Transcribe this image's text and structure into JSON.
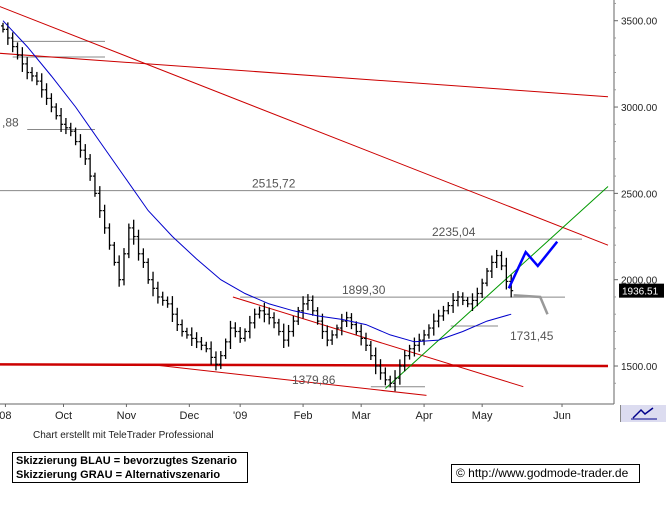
{
  "chart_data": {
    "type": "candlestick",
    "y_axis": {
      "ticks": [
        1500,
        2000,
        2500,
        3000,
        3500
      ],
      "tick_labels": [
        "1500.00",
        "2000.00",
        "2500.00",
        "3000.00",
        "3500.00"
      ],
      "range": [
        1280,
        3620
      ],
      "side": "right"
    },
    "x_axis": {
      "labels": [
        "08",
        "Oct",
        "Nov",
        "Dec",
        "'09",
        "Feb",
        "Mar",
        "Apr",
        "May",
        "Jun"
      ]
    },
    "current_price": {
      "label": "1936.51",
      "value": 1936.51
    },
    "levels": [
      {
        "label": "2515,72",
        "value": 2515.72
      },
      {
        "label": "2235,04",
        "value": 2235.04
      },
      {
        "label": "1899,30",
        "value": 1899.3
      },
      {
        "label": "1731,45",
        "value": 1731.45
      },
      {
        "label": "1379,86",
        "value": 1379.86
      },
      {
        "label": ",88",
        "value": 2870
      }
    ],
    "price_series": [
      [
        0,
        3450
      ],
      [
        2,
        3400
      ],
      [
        4,
        3350
      ],
      [
        6,
        3300
      ],
      [
        8,
        3250
      ],
      [
        10,
        3200
      ],
      [
        12,
        3180
      ],
      [
        14,
        3150
      ],
      [
        16,
        3100
      ],
      [
        18,
        3050
      ],
      [
        20,
        3000
      ],
      [
        22,
        2950
      ],
      [
        24,
        2900
      ],
      [
        26,
        2880
      ],
      [
        28,
        2860
      ],
      [
        30,
        2800
      ],
      [
        32,
        2750
      ],
      [
        34,
        2700
      ],
      [
        36,
        2600
      ],
      [
        38,
        2500
      ],
      [
        40,
        2400
      ],
      [
        42,
        2300
      ],
      [
        44,
        2200
      ],
      [
        46,
        2100
      ],
      [
        48,
        2000
      ],
      [
        50,
        2150
      ],
      [
        52,
        2300
      ],
      [
        54,
        2250
      ],
      [
        56,
        2150
      ],
      [
        58,
        2100
      ],
      [
        60,
        2000
      ],
      [
        62,
        1950
      ],
      [
        64,
        1900
      ],
      [
        66,
        1880
      ],
      [
        68,
        1860
      ],
      [
        70,
        1800
      ],
      [
        72,
        1740
      ],
      [
        74,
        1700
      ],
      [
        76,
        1680
      ],
      [
        78,
        1660
      ],
      [
        80,
        1640
      ],
      [
        82,
        1620
      ],
      [
        84,
        1600
      ],
      [
        86,
        1550
      ],
      [
        88,
        1510
      ],
      [
        90,
        1560
      ],
      [
        92,
        1640
      ],
      [
        94,
        1720
      ],
      [
        96,
        1700
      ],
      [
        98,
        1660
      ],
      [
        100,
        1700
      ],
      [
        102,
        1750
      ],
      [
        104,
        1800
      ],
      [
        106,
        1820
      ],
      [
        108,
        1800
      ],
      [
        110,
        1780
      ],
      [
        112,
        1750
      ],
      [
        114,
        1700
      ],
      [
        116,
        1650
      ],
      [
        118,
        1700
      ],
      [
        120,
        1760
      ],
      [
        122,
        1820
      ],
      [
        124,
        1860
      ],
      [
        126,
        1880
      ],
      [
        128,
        1820
      ],
      [
        130,
        1760
      ],
      [
        132,
        1700
      ],
      [
        134,
        1650
      ],
      [
        136,
        1680
      ],
      [
        138,
        1720
      ],
      [
        140,
        1760
      ],
      [
        142,
        1780
      ],
      [
        144,
        1740
      ],
      [
        146,
        1700
      ],
      [
        148,
        1660
      ],
      [
        150,
        1620
      ],
      [
        152,
        1560
      ],
      [
        154,
        1500
      ],
      [
        156,
        1460
      ],
      [
        158,
        1420
      ],
      [
        160,
        1400
      ],
      [
        162,
        1430
      ],
      [
        164,
        1500
      ],
      [
        166,
        1560
      ],
      [
        168,
        1600
      ],
      [
        170,
        1620
      ],
      [
        172,
        1650
      ],
      [
        174,
        1680
      ],
      [
        176,
        1720
      ],
      [
        178,
        1760
      ],
      [
        180,
        1790
      ],
      [
        182,
        1820
      ],
      [
        184,
        1850
      ],
      [
        186,
        1880
      ],
      [
        188,
        1900
      ],
      [
        190,
        1880
      ],
      [
        192,
        1860
      ],
      [
        194,
        1880
      ],
      [
        196,
        1920
      ],
      [
        198,
        1980
      ],
      [
        200,
        2050
      ],
      [
        202,
        2100
      ],
      [
        204,
        2140
      ],
      [
        206,
        2080
      ],
      [
        208,
        1990
      ],
      [
        210,
        1936.51
      ]
    ],
    "series": [
      {
        "name": "",
        "color": "#0000cc",
        "kind": "moving-average",
        "points": [
          [
            0,
            3500
          ],
          [
            10,
            3350
          ],
          [
            20,
            3180
          ],
          [
            30,
            3000
          ],
          [
            40,
            2800
          ],
          [
            50,
            2600
          ],
          [
            60,
            2400
          ],
          [
            70,
            2250
          ],
          [
            80,
            2120
          ],
          [
            90,
            2000
          ],
          [
            100,
            1920
          ],
          [
            110,
            1860
          ],
          [
            120,
            1820
          ],
          [
            130,
            1790
          ],
          [
            140,
            1770
          ],
          [
            150,
            1740
          ],
          [
            160,
            1680
          ],
          [
            170,
            1640
          ],
          [
            180,
            1650
          ],
          [
            190,
            1700
          ],
          [
            200,
            1760
          ],
          [
            210,
            1800
          ]
        ]
      },
      {
        "name": "",
        "color": "#cc0000",
        "kind": "trendline",
        "points": [
          [
            -10,
            3630
          ],
          [
            250,
            2200
          ]
        ]
      },
      {
        "name": "",
        "color": "#cc0000",
        "kind": "trendline",
        "points": [
          [
            -10,
            3320
          ],
          [
            250,
            3060
          ]
        ]
      },
      {
        "name": "",
        "color": "#cc0000",
        "kind": "trendline",
        "points": [
          [
            -10,
            1510
          ],
          [
            250,
            1500
          ]
        ]
      },
      {
        "name": "",
        "color": "#cc0000",
        "kind": "trendline",
        "points": [
          [
            95,
            1900
          ],
          [
            215,
            1380
          ]
        ]
      },
      {
        "name": "",
        "color": "#cc0000",
        "kind": "trendline",
        "points": [
          [
            60,
            1510
          ],
          [
            175,
            1330
          ]
        ]
      },
      {
        "name": "",
        "color": "#009900",
        "kind": "trendline",
        "points": [
          [
            158,
            1370
          ],
          [
            250,
            2540
          ]
        ]
      },
      {
        "name": "",
        "color": "#0000ff",
        "kind": "scenario",
        "points": [
          [
            209,
            1950
          ],
          [
            216,
            2160
          ],
          [
            221,
            2080
          ],
          [
            229,
            2220
          ]
        ]
      },
      {
        "name": "",
        "color": "#999999",
        "kind": "scenario",
        "points": [
          [
            211,
            1910
          ],
          [
            222,
            1900
          ],
          [
            225,
            1800
          ]
        ]
      }
    ]
  },
  "footer": {
    "credit": "Chart erstellt mit TeleTrader Professional",
    "legend_blue": "Skizzierung BLAU = bevorzugtes Szenario",
    "legend_gray": "Skizzierung GRAU = Alternativszenario",
    "url": "© http://www.godmode-trader.de"
  },
  "colors": {
    "resistance": "#cc0000",
    "support": "#009900",
    "moving_average": "#0000cc",
    "scenario_blue": "#0000ff",
    "scenario_gray": "#999999",
    "candles": "#000000",
    "level_lines": "#888888"
  }
}
